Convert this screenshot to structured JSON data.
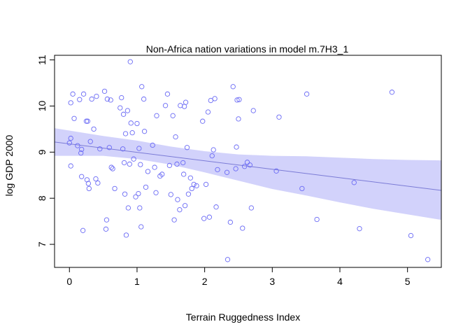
{
  "chart_data": {
    "type": "scatter",
    "title": "Non-Africa nation variations in model m.7H3_1",
    "xlabel": "Terrain Ruggedness Index",
    "ylabel": "log GDP 2000",
    "xlim": [
      -0.22,
      5.5
    ],
    "ylim": [
      6.5,
      11.1
    ],
    "xticks": [
      0,
      1,
      2,
      3,
      4,
      5
    ],
    "yticks": [
      7,
      8,
      9,
      10,
      11
    ],
    "grid": false,
    "colors": {
      "points": "#6a6af5",
      "line": "#7b7bd6",
      "band": "#d2d2fb"
    },
    "regression": {
      "x": [
        -0.22,
        5.5
      ],
      "y": [
        9.22,
        8.17
      ]
    },
    "band": {
      "x": [
        -0.22,
        0.5,
        1.0,
        1.5,
        2.0,
        2.5,
        3.0,
        3.5,
        4.0,
        4.5,
        5.0,
        5.5
      ],
      "upper": [
        9.52,
        9.35,
        9.25,
        9.12,
        9.02,
        8.95,
        8.92,
        8.91,
        8.88,
        8.85,
        8.83,
        8.82
      ],
      "lower": [
        8.92,
        8.92,
        8.85,
        8.73,
        8.56,
        8.38,
        8.2,
        8.06,
        7.91,
        7.77,
        7.65,
        7.53
      ]
    },
    "points": [
      [
        0.02,
        10.07
      ],
      [
        0.05,
        10.26
      ],
      [
        0.07,
        9.73
      ],
      [
        0.02,
        9.3
      ],
      [
        0.0,
        9.2
      ],
      [
        0.02,
        8.7
      ],
      [
        0.12,
        9.14
      ],
      [
        0.15,
        10.14
      ],
      [
        0.17,
        8.98
      ],
      [
        0.18,
        9.06
      ],
      [
        0.18,
        8.47
      ],
      [
        0.2,
        7.3
      ],
      [
        0.21,
        10.26
      ],
      [
        0.25,
        9.67
      ],
      [
        0.27,
        9.67
      ],
      [
        0.26,
        8.4
      ],
      [
        0.28,
        8.32
      ],
      [
        0.29,
        8.21
      ],
      [
        0.31,
        9.23
      ],
      [
        0.33,
        10.15
      ],
      [
        0.36,
        9.5
      ],
      [
        0.39,
        8.42
      ],
      [
        0.4,
        10.21
      ],
      [
        0.42,
        8.33
      ],
      [
        0.45,
        9.07
      ],
      [
        0.52,
        10.32
      ],
      [
        0.54,
        7.33
      ],
      [
        0.55,
        7.53
      ],
      [
        0.56,
        10.15
      ],
      [
        0.59,
        9.1
      ],
      [
        0.61,
        10.13
      ],
      [
        0.62,
        8.67
      ],
      [
        0.64,
        8.64
      ],
      [
        0.67,
        8.21
      ],
      [
        0.75,
        9.96
      ],
      [
        0.77,
        10.18
      ],
      [
        0.79,
        9.07
      ],
      [
        0.8,
        9.82
      ],
      [
        0.81,
        8.77
      ],
      [
        0.82,
        8.09
      ],
      [
        0.83,
        9.4
      ],
      [
        0.84,
        7.2
      ],
      [
        0.86,
        9.9
      ],
      [
        0.87,
        7.79
      ],
      [
        0.89,
        8.74
      ],
      [
        0.9,
        10.96
      ],
      [
        0.91,
        9.63
      ],
      [
        0.93,
        9.42
      ],
      [
        0.95,
        8.85
      ],
      [
        0.98,
        8.03
      ],
      [
        1.0,
        9.62
      ],
      [
        1.02,
        8.1
      ],
      [
        1.03,
        9.08
      ],
      [
        1.04,
        7.79
      ],
      [
        1.05,
        8.73
      ],
      [
        1.06,
        7.38
      ],
      [
        1.07,
        10.42
      ],
      [
        1.1,
        10.15
      ],
      [
        1.11,
        9.45
      ],
      [
        1.13,
        8.24
      ],
      [
        1.16,
        8.58
      ],
      [
        1.23,
        9.15
      ],
      [
        1.26,
        8.67
      ],
      [
        1.28,
        8.12
      ],
      [
        1.29,
        9.79
      ],
      [
        1.34,
        8.48
      ],
      [
        1.37,
        8.52
      ],
      [
        1.42,
        10.01
      ],
      [
        1.45,
        10.26
      ],
      [
        1.48,
        8.71
      ],
      [
        1.5,
        8.08
      ],
      [
        1.53,
        9.79
      ],
      [
        1.55,
        7.53
      ],
      [
        1.57,
        9.33
      ],
      [
        1.59,
        8.74
      ],
      [
        1.6,
        7.97
      ],
      [
        1.63,
        7.75
      ],
      [
        1.64,
        10.01
      ],
      [
        1.68,
        8.77
      ],
      [
        1.69,
        8.52
      ],
      [
        1.7,
        9.99
      ],
      [
        1.71,
        7.84
      ],
      [
        1.72,
        10.08
      ],
      [
        1.74,
        9.1
      ],
      [
        1.76,
        8.09
      ],
      [
        1.79,
        8.44
      ],
      [
        1.81,
        8.21
      ],
      [
        1.84,
        8.3
      ],
      [
        1.88,
        8.27
      ],
      [
        1.97,
        9.67
      ],
      [
        1.99,
        7.56
      ],
      [
        2.02,
        8.3
      ],
      [
        2.05,
        9.87
      ],
      [
        2.07,
        7.59
      ],
      [
        2.09,
        10.12
      ],
      [
        2.11,
        8.92
      ],
      [
        2.13,
        9.05
      ],
      [
        2.15,
        10.16
      ],
      [
        2.17,
        7.81
      ],
      [
        2.19,
        8.62
      ],
      [
        2.33,
        8.56
      ],
      [
        2.34,
        6.67
      ],
      [
        2.38,
        7.48
      ],
      [
        2.42,
        10.42
      ],
      [
        2.46,
        8.64
      ],
      [
        2.47,
        9.11
      ],
      [
        2.48,
        10.13
      ],
      [
        2.5,
        9.72
      ],
      [
        2.51,
        10.14
      ],
      [
        2.56,
        7.35
      ],
      [
        2.59,
        8.69
      ],
      [
        2.63,
        8.78
      ],
      [
        2.67,
        8.72
      ],
      [
        2.69,
        7.79
      ],
      [
        2.72,
        9.9
      ],
      [
        3.06,
        8.59
      ],
      [
        3.1,
        9.76
      ],
      [
        3.44,
        8.21
      ],
      [
        3.51,
        10.26
      ],
      [
        3.66,
        7.54
      ],
      [
        4.21,
        8.34
      ],
      [
        4.29,
        7.34
      ],
      [
        4.77,
        10.3
      ],
      [
        5.05,
        7.19
      ],
      [
        5.3,
        6.67
      ]
    ]
  }
}
